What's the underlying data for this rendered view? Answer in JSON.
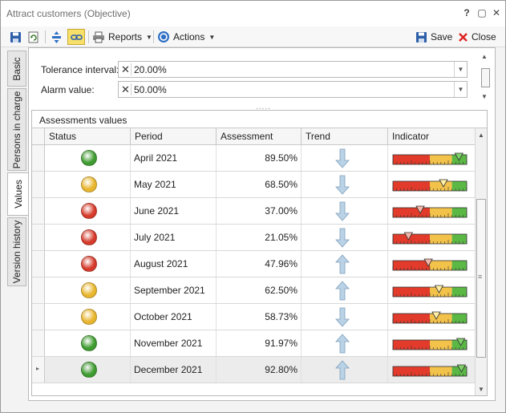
{
  "window": {
    "title": "Attract customers (Objective)"
  },
  "titlebar_buttons": {
    "help": "?",
    "restore": "▢",
    "close": "✕"
  },
  "toolbar": {
    "reports_label": "Reports",
    "actions_label": "Actions",
    "save_label": "Save",
    "close_label": "Close"
  },
  "side_tabs": [
    {
      "label": "Basic"
    },
    {
      "label": "Persons in charge"
    },
    {
      "label": "Values"
    },
    {
      "label": "Version history"
    }
  ],
  "form": {
    "tolerance": {
      "label": "Tolerance interval:",
      "value": "20.00%"
    },
    "alarm": {
      "label": "Alarm value:",
      "value": "50.00%"
    },
    "splitter": "....."
  },
  "assessments": {
    "title": "Assessments values",
    "columns": {
      "status": "Status",
      "period": "Period",
      "assessment": "Assessment",
      "trend": "Trend",
      "indicator": "Indicator"
    },
    "rows": [
      {
        "status": "green",
        "period": "April 2021",
        "assessment": "89.50%",
        "trend": "down",
        "indicator": 89.5
      },
      {
        "status": "yellow",
        "period": "May 2021",
        "assessment": "68.50%",
        "trend": "down",
        "indicator": 68.5
      },
      {
        "status": "red",
        "period": "June 2021",
        "assessment": "37.00%",
        "trend": "down",
        "indicator": 37.0
      },
      {
        "status": "red",
        "period": "July 2021",
        "assessment": "21.05%",
        "trend": "down",
        "indicator": 21.05
      },
      {
        "status": "red",
        "period": "August 2021",
        "assessment": "47.96%",
        "trend": "up",
        "indicator": 47.96
      },
      {
        "status": "yellow",
        "period": "September 2021",
        "assessment": "62.50%",
        "trend": "up",
        "indicator": 62.5
      },
      {
        "status": "yellow",
        "period": "October 2021",
        "assessment": "58.73%",
        "trend": "down",
        "indicator": 58.73
      },
      {
        "status": "green",
        "period": "November 2021",
        "assessment": "91.97%",
        "trend": "up",
        "indicator": 91.97
      },
      {
        "status": "green",
        "period": "December 2021",
        "assessment": "92.80%",
        "trend": "up",
        "indicator": 92.8
      }
    ]
  },
  "colors": {
    "green": "#3e9b2f",
    "yellow": "#e8b52c",
    "red": "#d53a2a",
    "gauge_red": "#e23b2b",
    "gauge_yellow": "#f2c24a",
    "gauge_green": "#5bb845",
    "trend_arrow": "#b9d2e6"
  }
}
